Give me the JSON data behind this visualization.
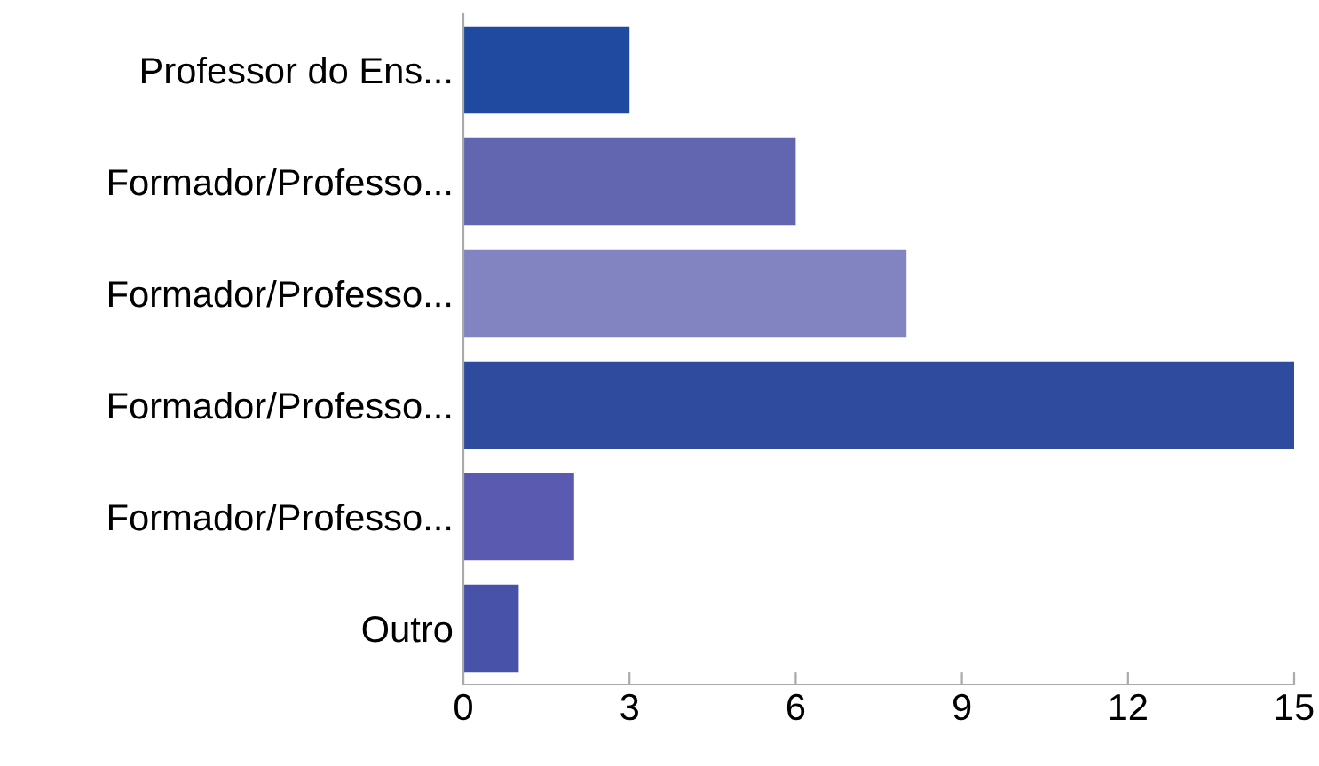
{
  "chart_data": {
    "type": "bar",
    "orientation": "horizontal",
    "categories": [
      "Professor do Ens...",
      "Formador/Professo...",
      "Formador/Professo...",
      "Formador/Professo...",
      "Formador/Professo...",
      "Outro"
    ],
    "values": [
      3,
      6,
      8,
      15,
      2,
      1
    ],
    "colors": [
      "#1f4aa0",
      "#6266b0",
      "#8284c2",
      "#2f4b9e",
      "#5a5ab0",
      "#4852a8"
    ],
    "xlim": [
      0,
      15
    ],
    "xticks": [
      0,
      3,
      6,
      9,
      12,
      15
    ],
    "grid": false
  }
}
